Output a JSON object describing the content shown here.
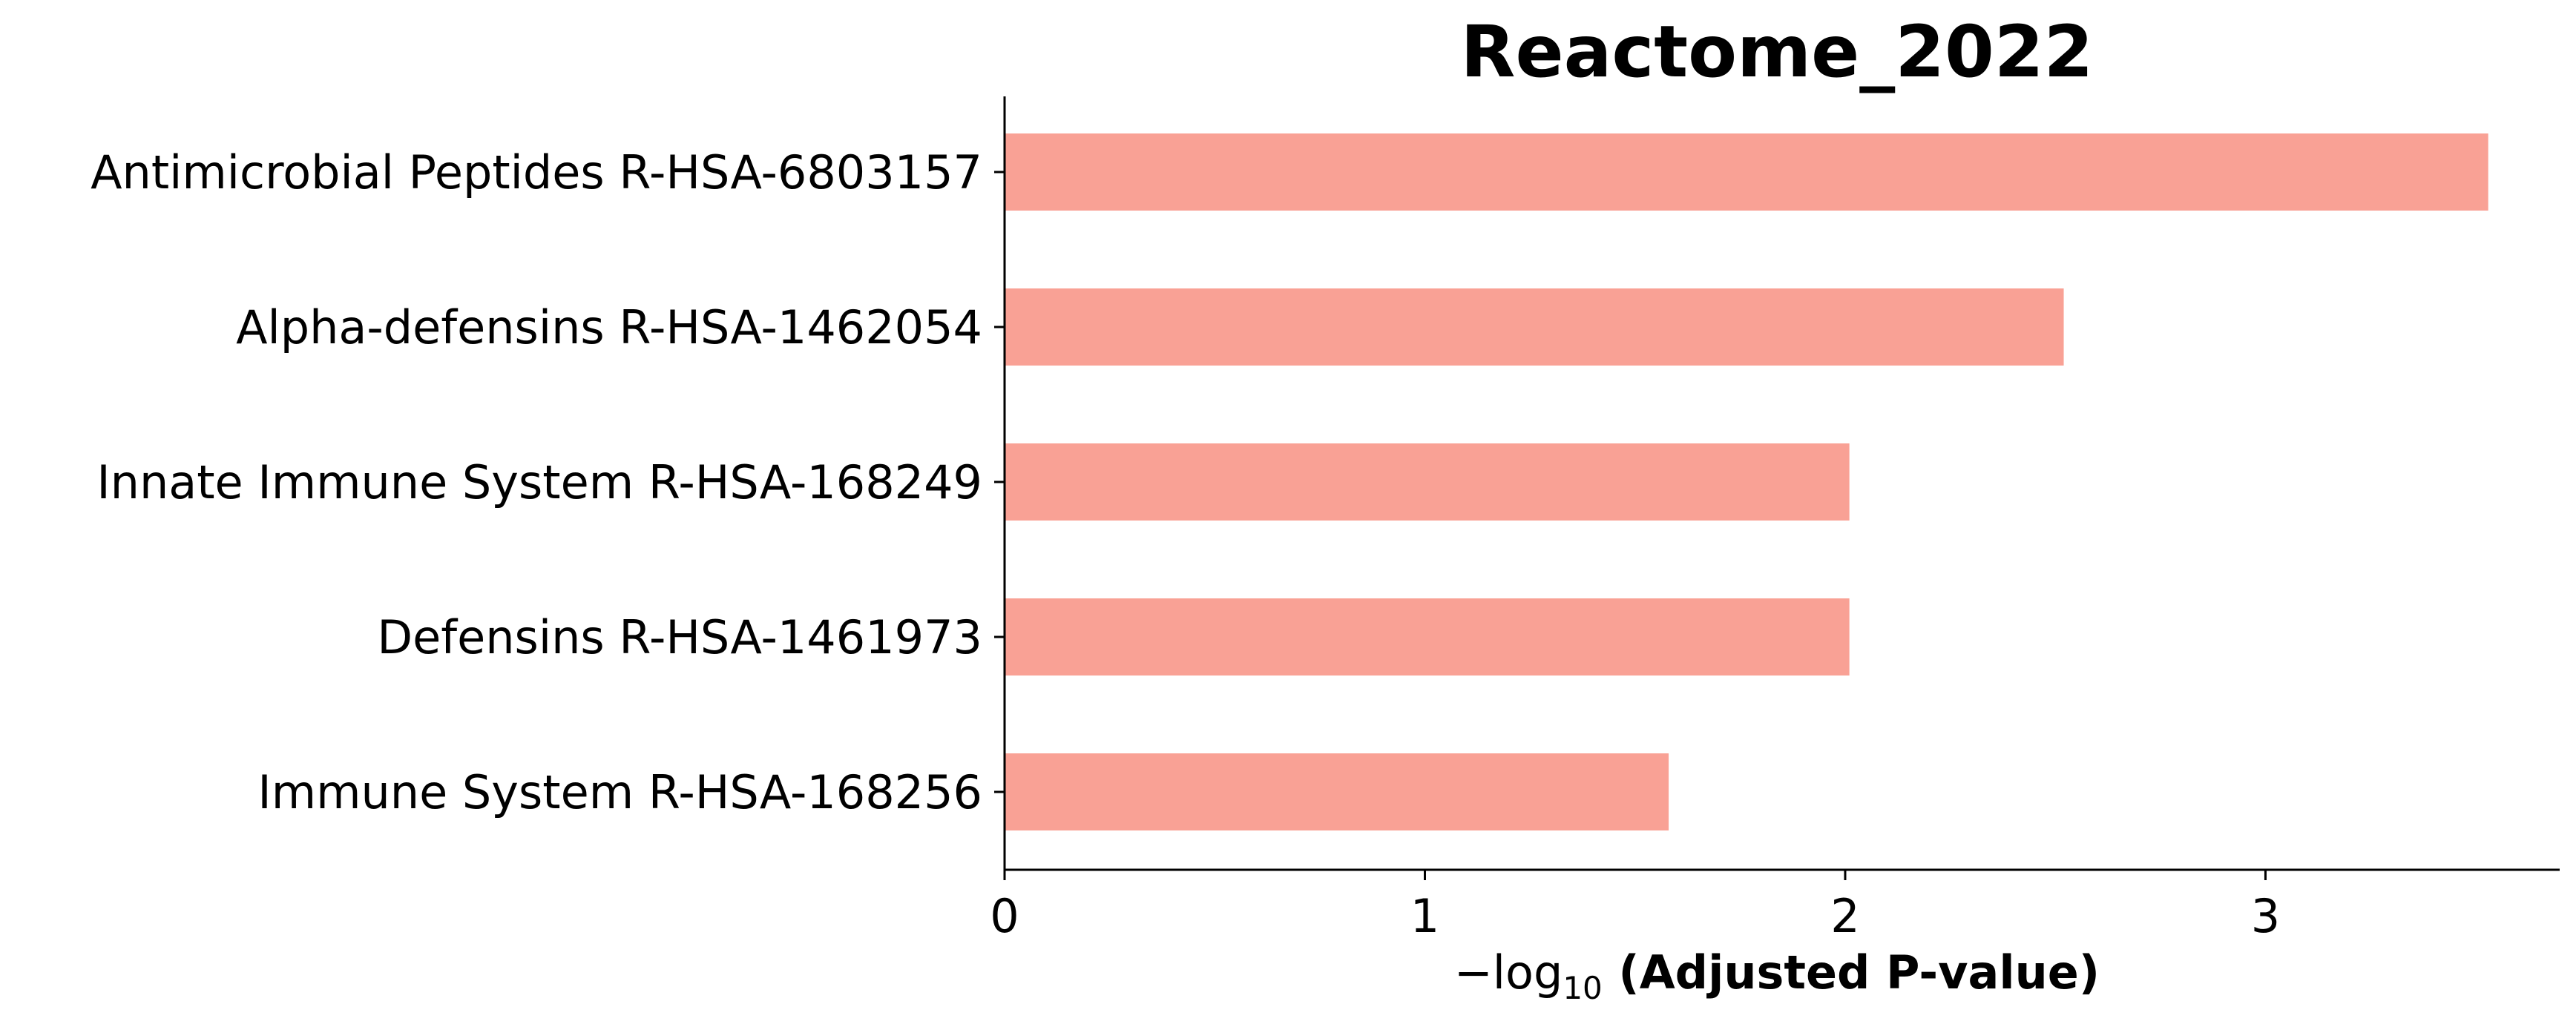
{
  "chart_data": {
    "type": "bar",
    "orientation": "horizontal",
    "title": "Reactome_2022",
    "categories": [
      "Antimicrobial Peptides R-HSA-6803157",
      "Alpha-defensins R-HSA-1462054",
      "Innate Immune System R-HSA-168249",
      "Defensins R-HSA-1461973",
      "Immune System R-HSA-168256"
    ],
    "values": [
      3.53,
      2.52,
      2.01,
      2.01,
      1.58
    ],
    "xlabel_prefix": "−log",
    "xlabel_subscript": "10",
    "xlabel_main": " (Adjusted P-value)",
    "xticks": [
      "0",
      "1",
      "2",
      "3"
    ],
    "xlim": [
      0,
      3.7
    ],
    "bar_color": "#f9a195",
    "grid": false,
    "legend": "none"
  }
}
